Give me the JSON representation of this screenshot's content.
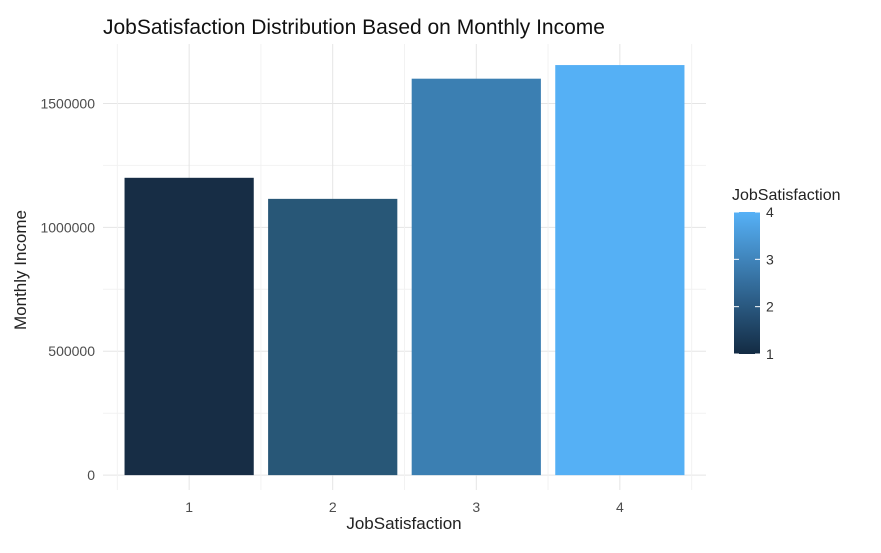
{
  "chart_data": {
    "type": "bar",
    "title": "JobSatisfaction Distribution Based on Monthly Income",
    "xlabel": "JobSatisfaction",
    "ylabel": "Monthly Income",
    "categories": [
      "1",
      "2",
      "3",
      "4"
    ],
    "values": [
      1200000,
      1115000,
      1600000,
      1655000
    ],
    "ylim": [
      -60000,
      1740000
    ],
    "y_ticks": [
      0,
      500000,
      1000000,
      1500000
    ],
    "y_tick_labels": [
      "0",
      "500000",
      "1000000",
      "1500000"
    ],
    "grid": true,
    "legend": {
      "title": "JobSatisfaction",
      "type": "colorbar",
      "position": "right",
      "range": [
        1,
        4
      ],
      "ticks": [
        "1",
        "2",
        "3",
        "4"
      ]
    },
    "colors": {
      "low": "#132B43",
      "high": "#56B1F7",
      "bars": [
        "#172d45",
        "#285777",
        "#3b7fb2",
        "#55b0f5"
      ]
    }
  }
}
